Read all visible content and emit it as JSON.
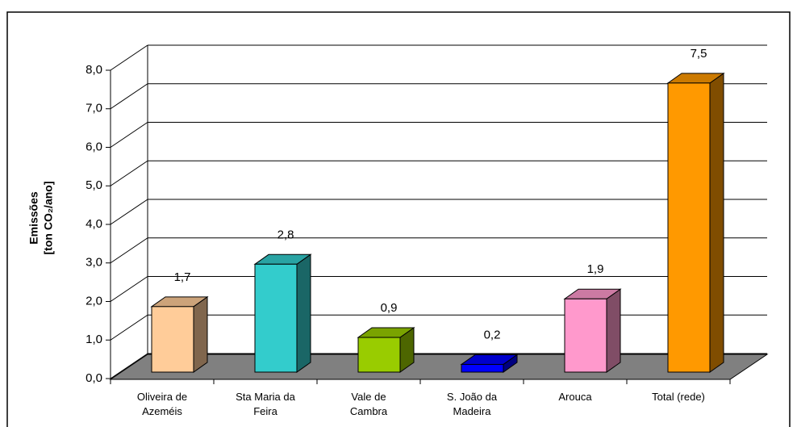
{
  "chart_data": {
    "type": "bar3d",
    "y_label": [
      "Emissões",
      "[ton CO₂/ano]"
    ],
    "categories": [
      "Oliveira de Azeméis",
      "Sta Maria da Feira",
      "Vale de Cambra",
      "S. João da Madeira",
      "Arouca",
      "Total  (rede)"
    ],
    "values": [
      1.7,
      2.8,
      0.9,
      0.2,
      1.9,
      7.5
    ],
    "value_labels": [
      "1,7",
      "2,8",
      "0,9",
      "0,2",
      "1,9",
      "7,5"
    ],
    "colors": [
      "#ffcc99",
      "#33cccc",
      "#99cc00",
      "#0000ff",
      "#ff99cc",
      "#ff9900"
    ],
    "ylim": [
      0,
      8
    ],
    "yticks": [
      {
        "value": 0,
        "label": "0,0"
      },
      {
        "value": 1,
        "label": "1,0"
      },
      {
        "value": 2,
        "label": "2,0"
      },
      {
        "value": 3,
        "label": "3,0"
      },
      {
        "value": 4,
        "label": "4,0"
      },
      {
        "value": 5,
        "label": "5,0"
      },
      {
        "value": 6,
        "label": "6,0"
      },
      {
        "value": 7,
        "label": "7,0"
      },
      {
        "value": 8,
        "label": "8,0"
      }
    ],
    "grid": true
  }
}
